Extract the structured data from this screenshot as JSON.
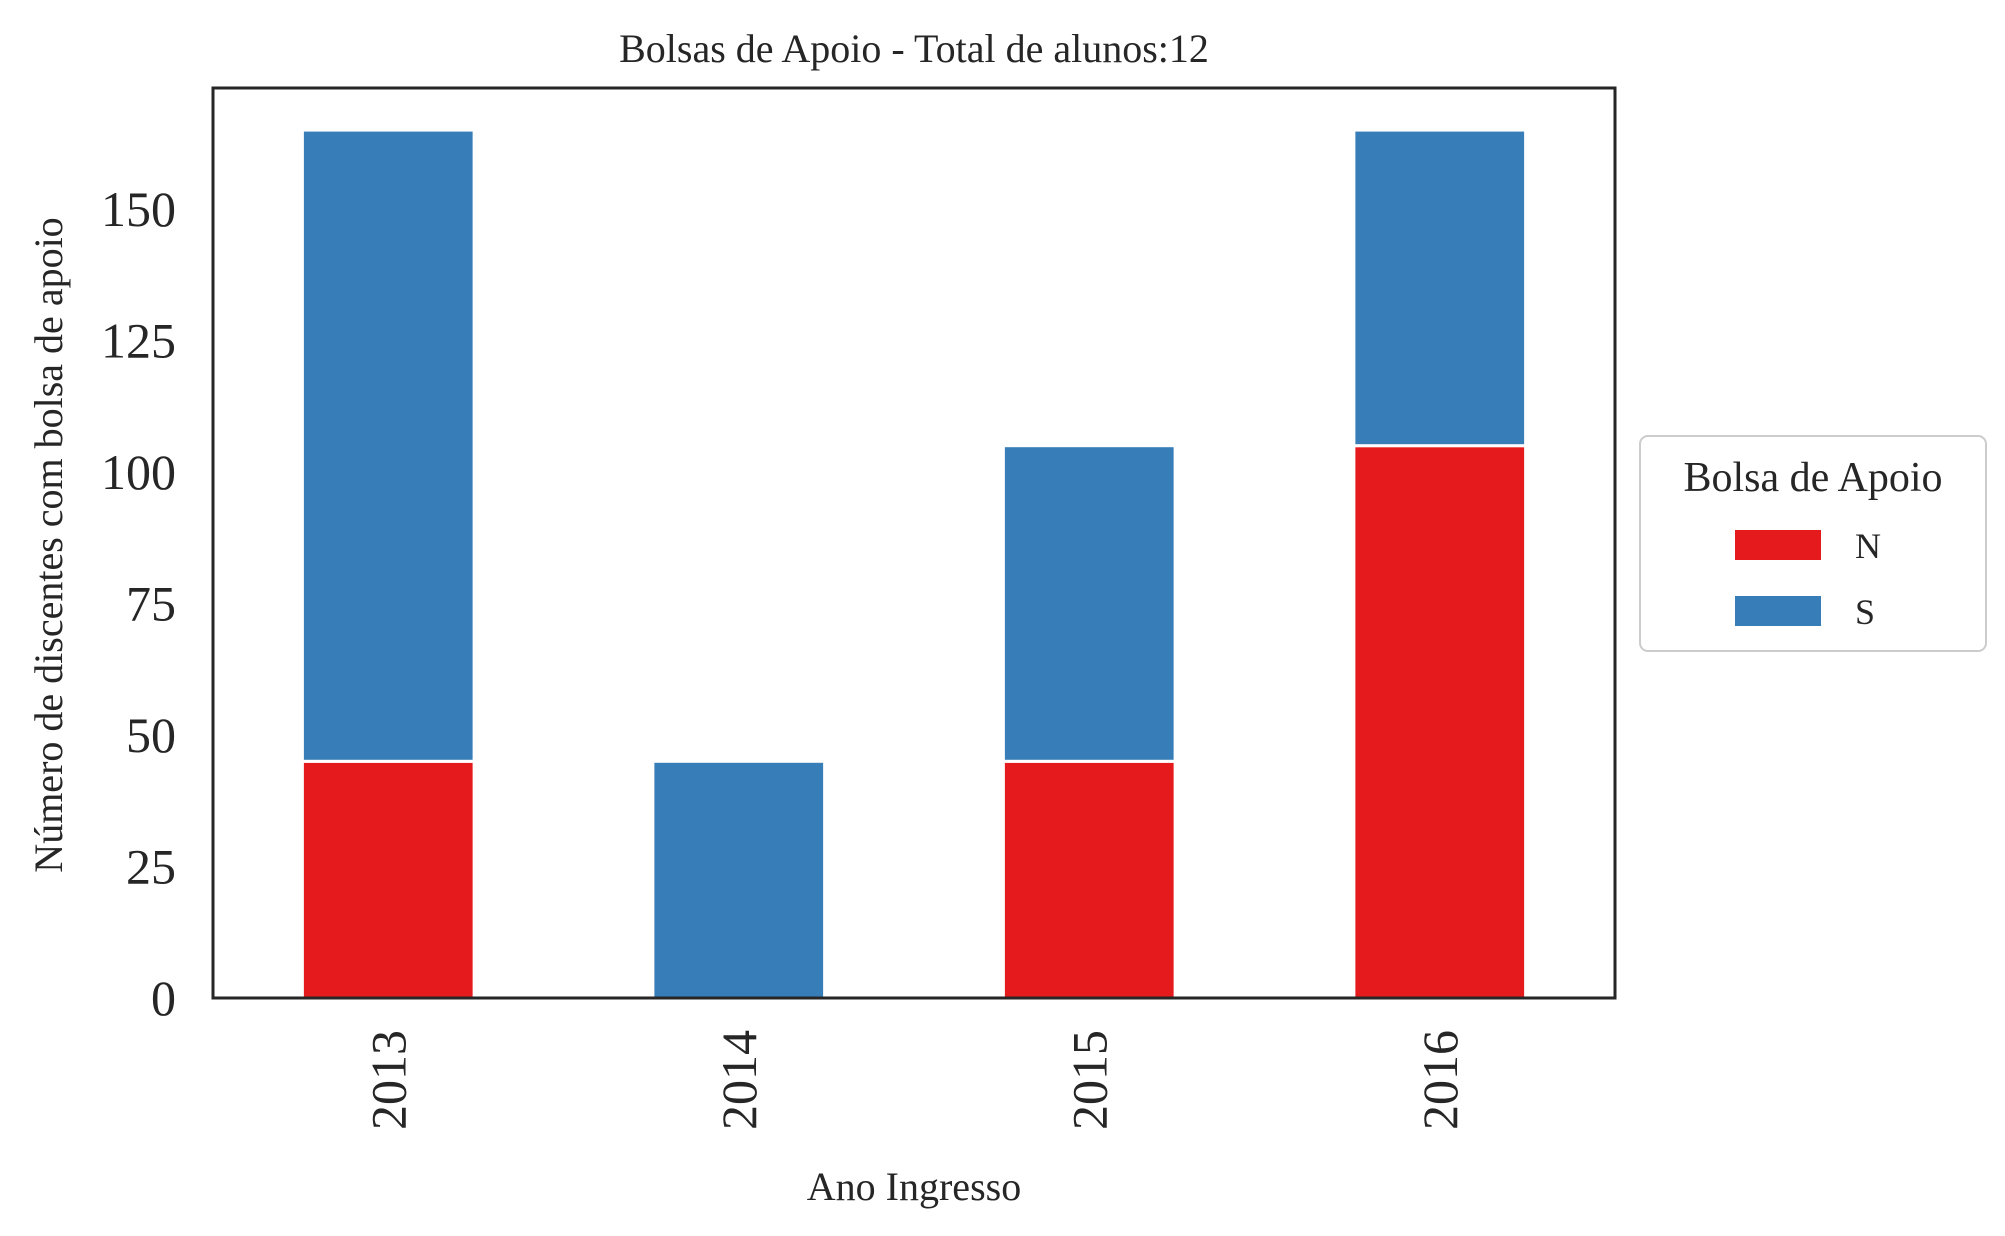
{
  "chart_data": {
    "type": "bar",
    "stacked": true,
    "title": "Bolsas de Apoio - Total de alunos:12",
    "xlabel": "Ano Ingresso",
    "ylabel": "Número de discentes com bolsa de apoio",
    "categories": [
      "2013",
      "2014",
      "2015",
      "2016"
    ],
    "series": [
      {
        "name": "N",
        "color": "#e41a1c",
        "values": [
          45,
          0,
          45,
          105
        ]
      },
      {
        "name": "S",
        "color": "#377eb8",
        "values": [
          120,
          45,
          60,
          60
        ]
      }
    ],
    "ylim": [
      0,
      173
    ],
    "yticks": [
      0,
      25,
      50,
      75,
      100,
      125,
      150
    ],
    "grid": false,
    "legend": {
      "title": "Bolsa de Apoio",
      "placement": "outside right"
    }
  }
}
